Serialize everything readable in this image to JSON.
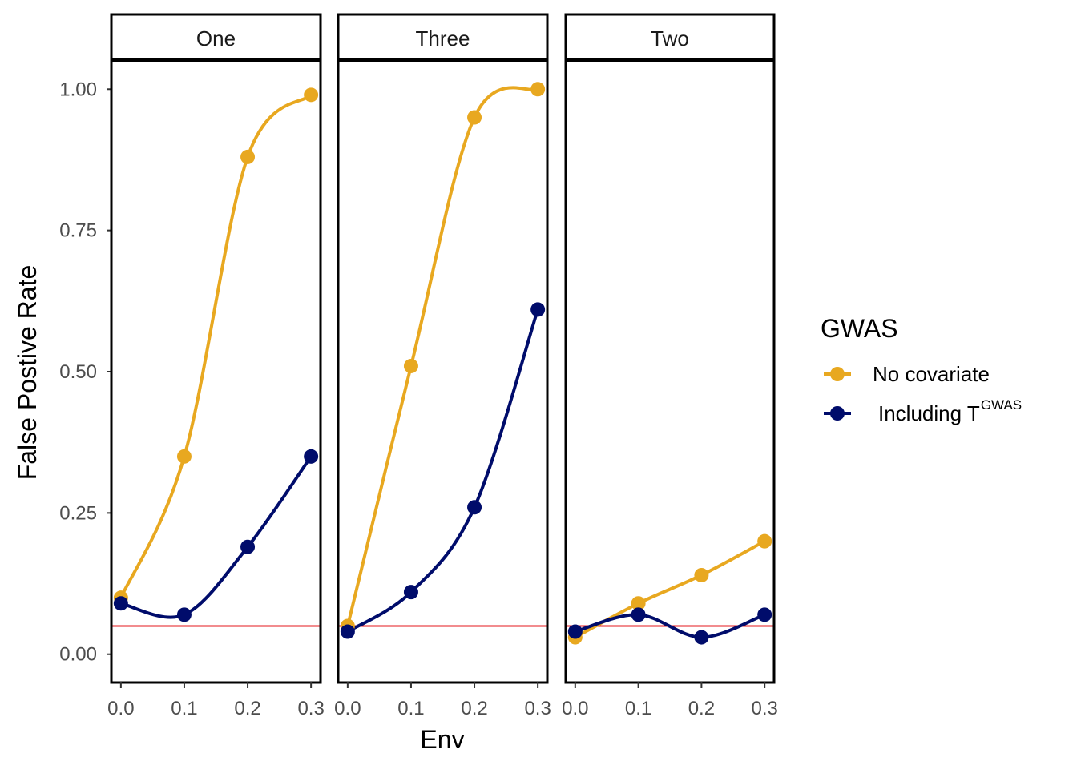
{
  "chart_data": {
    "type": "line",
    "xlabel": "Env",
    "ylabel": "False Postive Rate",
    "x": [
      0.0,
      0.1,
      0.2,
      0.3
    ],
    "xticks": [
      "0.0",
      "0.1",
      "0.2",
      "0.3"
    ],
    "xlim": [
      -0.015,
      0.315
    ],
    "ylim": [
      -0.05,
      1.05
    ],
    "yticks": [
      "0.00",
      "0.25",
      "0.50",
      "0.75",
      "1.00"
    ],
    "reference_line": {
      "y": 0.05,
      "color": "#e41a1c"
    },
    "legend": {
      "title": "GWAS",
      "position": "right",
      "entries": [
        {
          "label": "No covariate",
          "color": "#E8A820"
        },
        {
          "label": "Including T",
          "superscript": "GWAS",
          "color": "#000C6B"
        }
      ]
    },
    "panels": [
      {
        "strip": "One",
        "series": [
          {
            "name": "No covariate",
            "values": [
              0.1,
              0.35,
              0.88,
              0.99
            ]
          },
          {
            "name": "Including TGWAS",
            "values": [
              0.09,
              0.07,
              0.19,
              0.35
            ]
          }
        ]
      },
      {
        "strip": "Three",
        "series": [
          {
            "name": "No covariate",
            "values": [
              0.05,
              0.51,
              0.95,
              1.0
            ]
          },
          {
            "name": "Including TGWAS",
            "values": [
              0.04,
              0.11,
              0.26,
              0.61
            ]
          }
        ]
      },
      {
        "strip": "Two",
        "series": [
          {
            "name": "No covariate",
            "values": [
              0.03,
              0.09,
              0.14,
              0.2
            ]
          },
          {
            "name": "Including TGWAS",
            "values": [
              0.04,
              0.07,
              0.03,
              0.07
            ]
          }
        ]
      }
    ]
  }
}
